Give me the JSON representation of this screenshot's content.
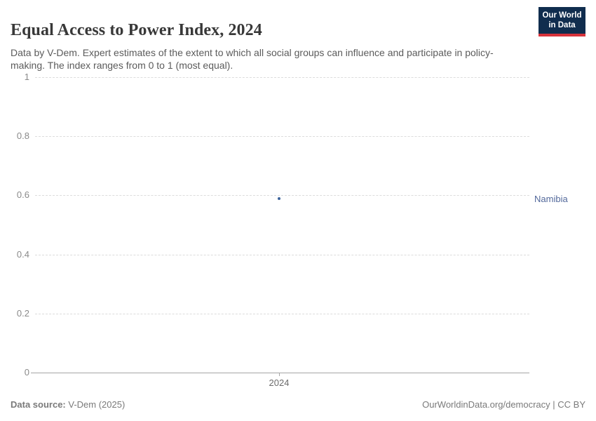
{
  "header": {
    "title": "Equal Access to Power Index, 2024",
    "subtitle": "Data by V-Dem. Expert estimates of the extent to which all social groups can influence and participate in policy-making. The index ranges from 0 to 1 (most equal)."
  },
  "logo": {
    "line1": "Our World",
    "line2": "in Data",
    "bg_color": "#102d4e",
    "accent_color": "#d7333b"
  },
  "chart_data": {
    "type": "scatter",
    "title": "Equal Access to Power Index, 2024",
    "x": [
      2024
    ],
    "series": [
      {
        "name": "Namibia",
        "values": [
          0.59
        ],
        "color": "#3d649c"
      }
    ],
    "xlabel": "",
    "ylabel": "",
    "ylim": [
      0,
      1
    ],
    "yticks": [
      0,
      0.2,
      0.4,
      0.6,
      0.8,
      1
    ],
    "ytick_labels": [
      "0",
      "0.2",
      "0.4",
      "0.6",
      "0.8",
      "1"
    ],
    "xticks": [
      2024
    ],
    "xtick_labels": [
      "2024"
    ],
    "grid": "horizontal-dashed",
    "legend_position": "label-right-of-plot",
    "entity_label_color": "#53699b"
  },
  "footer": {
    "source_label": "Data source:",
    "source_value": " V-Dem (2025)",
    "credit": "OurWorldinData.org/democracy | CC BY"
  }
}
